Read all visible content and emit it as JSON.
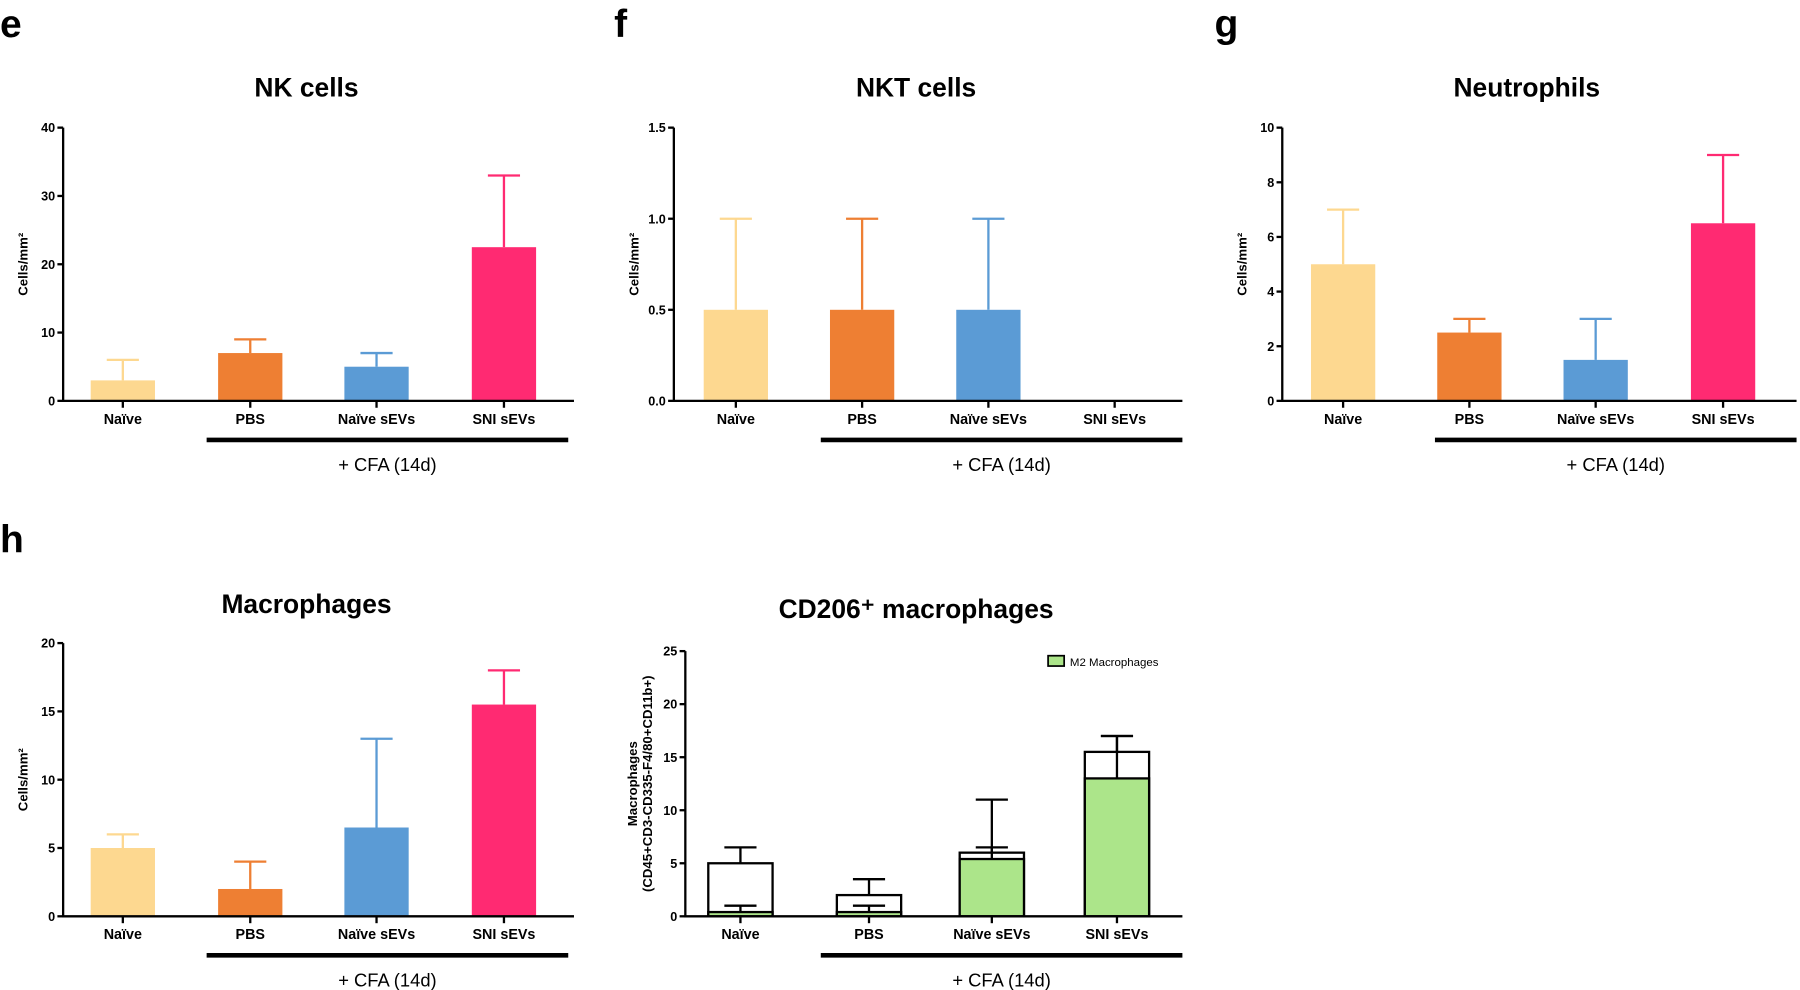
{
  "colors": {
    "Naïve": "#FDD890",
    "PBS": "#EE7F33",
    "Naïve sEVs": "#5B9BD5",
    "SNI sEVs": "#FF2A72",
    "M2": "#ACE58A"
  },
  "chart_data": [
    {
      "panel": "e",
      "type": "bar",
      "title": "NK cells",
      "ylabel": "Cells/mm²",
      "categories": [
        "Naïve",
        "PBS",
        "Naïve sEVs",
        "SNI sEVs"
      ],
      "values": [
        3,
        7,
        5,
        22.5
      ],
      "error_upper": [
        6,
        9,
        7,
        33
      ],
      "ylim": [
        0,
        40
      ],
      "yticks": [
        "0",
        "10",
        "20",
        "30",
        "40"
      ],
      "bracket_label": "+ CFA (14d)"
    },
    {
      "panel": "f",
      "type": "bar",
      "title": "NKT cells",
      "ylabel": "Cells/mm²",
      "categories": [
        "Naïve",
        "PBS",
        "Naïve sEVs",
        "SNI sEVs"
      ],
      "values": [
        0.5,
        0.5,
        0.5,
        0
      ],
      "error_upper": [
        1.0,
        1.0,
        1.0,
        0
      ],
      "ylim": [
        0,
        1.5
      ],
      "yticks": [
        "0.0",
        "0.5",
        "1.0",
        "1.5"
      ],
      "bracket_label": "+ CFA (14d)"
    },
    {
      "panel": "g",
      "type": "bar",
      "title": "Neutrophils",
      "ylabel": "Cells/mm²",
      "categories": [
        "Naïve",
        "PBS",
        "Naïve sEVs",
        "SNI sEVs"
      ],
      "values": [
        5,
        2.5,
        1.5,
        6.5
      ],
      "error_upper": [
        7,
        3,
        3,
        9
      ],
      "ylim": [
        0,
        10
      ],
      "yticks": [
        "0",
        "2",
        "4",
        "6",
        "8",
        "10"
      ],
      "bracket_label": "+ CFA (14d)"
    },
    {
      "panel": "h",
      "type": "bar",
      "title": "Macrophages",
      "ylabel": "Cells/mm²",
      "categories": [
        "Naïve",
        "PBS",
        "Naïve sEVs",
        "SNI sEVs"
      ],
      "values": [
        5,
        2,
        6.5,
        15.5
      ],
      "error_upper": [
        6,
        4,
        13,
        18
      ],
      "ylim": [
        0,
        20
      ],
      "yticks": [
        "0",
        "5",
        "10",
        "15",
        "20"
      ],
      "bracket_label": "+ CFA (14d)"
    },
    {
      "panel": "",
      "type": "bar",
      "title": "CD206⁺ macrophages",
      "ylabel": "Macrophages",
      "ylabel2": "(CD45+CD3-CD335-F4/80+CD11b+)",
      "categories": [
        "Naïve",
        "PBS",
        "Naïve sEVs",
        "SNI sEVs"
      ],
      "values": [
        5,
        2,
        6,
        15.5
      ],
      "error_upper": [
        6.5,
        3.5,
        6.5,
        17
      ],
      "m2_values": [
        0.4,
        0.4,
        5.4,
        13
      ],
      "m2_error_upper": [
        1,
        1,
        11,
        17
      ],
      "legend": [
        "M2 Macrophages"
      ],
      "legend_position": "top-right",
      "ylim": [
        0,
        25
      ],
      "yticks": [
        "0",
        "5",
        "10",
        "15",
        "20",
        "25"
      ],
      "bracket_label": "+ CFA (14d)"
    }
  ]
}
